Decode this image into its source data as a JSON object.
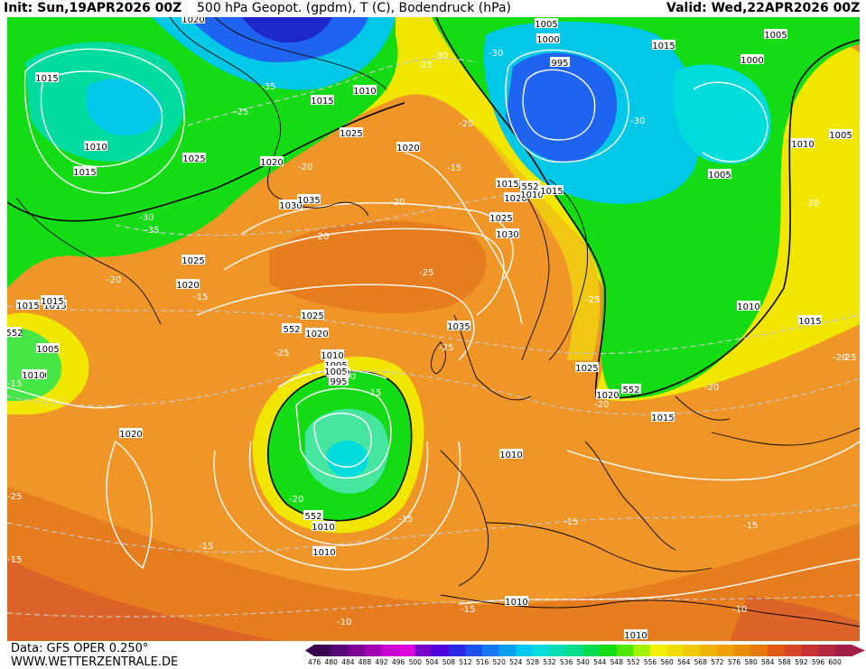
{
  "header": {
    "init_label": "Init: Sun,19APR2026 00Z",
    "title": "500 hPa Geopot. (gpdm), T (C), Bodendruck (hPa)",
    "valid_label": "Valid: Wed,22APR2026 00Z"
  },
  "footer": {
    "data_source": "Data: GFS OPER 0.250°",
    "website": "WWW.WETTERZENTRALE.DE"
  },
  "legend": {
    "values": [
      "476",
      "480",
      "484",
      "488",
      "492",
      "496",
      "500",
      "504",
      "508",
      "512",
      "516",
      "520",
      "524",
      "528",
      "532",
      "536",
      "540",
      "544",
      "548",
      "552",
      "556",
      "560",
      "564",
      "568",
      "572",
      "576",
      "580",
      "584",
      "588",
      "592",
      "596",
      "600"
    ],
    "colors": [
      "#3a0050",
      "#5a0078",
      "#7c0096",
      "#a000b4",
      "#c800d2",
      "#dc00dc",
      "#7800c8",
      "#5000dc",
      "#2828e6",
      "#1e50f0",
      "#1478f0",
      "#0aa0f0",
      "#00c8f0",
      "#00dcdc",
      "#00dcb4",
      "#00dc8c",
      "#00dc50",
      "#14dc14",
      "#50e600",
      "#a0f000",
      "#f0f000",
      "#f0dc00",
      "#f0c800",
      "#f0b400",
      "#f0a000",
      "#ec8c00",
      "#e87800",
      "#e05a14",
      "#d84628",
      "#c83232",
      "#b4283c",
      "#a01e46"
    ]
  },
  "map": {
    "pressure_labels": [
      "1020",
      "1005",
      "1000",
      "995",
      "1015",
      "1005",
      "1000",
      "1015",
      "1010",
      "1015",
      "1025",
      "1020",
      "1030",
      "1035",
      "1015",
      "1020",
      "1010",
      "1025",
      "1030",
      "1010",
      "1025",
      "1020",
      "1015",
      "1035",
      "1025",
      "1020",
      "1015",
      "1010",
      "1005",
      "1000",
      "995",
      "1010",
      "1005",
      "1010",
      "1020",
      "1010",
      "1010",
      "1010",
      "1015",
      "1015",
      "1005",
      "1025",
      "1020",
      "1015",
      "1010",
      "1015",
      "1010",
      "1005",
      "1015",
      "1020",
      "1025",
      "1010",
      "1005",
      "1010"
    ],
    "temp_labels": [
      "-25",
      "-30",
      "-30",
      "-35",
      "-25",
      "-30",
      "-20",
      "-30",
      "-35",
      "-20",
      "-20",
      "-15",
      "-20",
      "-25",
      "-20",
      "-25",
      "-20",
      "-25",
      "-15",
      "-20",
      "-25",
      "-15",
      "-20",
      "-15",
      "-15",
      "-15",
      "-15",
      "-10",
      "-15",
      "-10",
      "-20",
      "-20",
      "-15",
      "-25",
      "-25",
      "-15",
      "-20",
      "-15"
    ],
    "height_labels": [
      "552",
      "552",
      "552",
      "552",
      "552"
    ],
    "colors": {
      "ocean_orange": "#f09628",
      "warm_orange": "#e67d1e",
      "deep_orange": "#dc6428",
      "yellow": "#f0e600",
      "gold": "#f0c814",
      "green": "#14dc14",
      "lime": "#46e646",
      "teal": "#00dca0",
      "cyan": "#00c8e6",
      "blue": "#1e64f0",
      "deep_blue": "#1e28c8",
      "coast": "#000000",
      "isobar": "#ffffff",
      "isotherm": "#c8c8c8"
    }
  }
}
